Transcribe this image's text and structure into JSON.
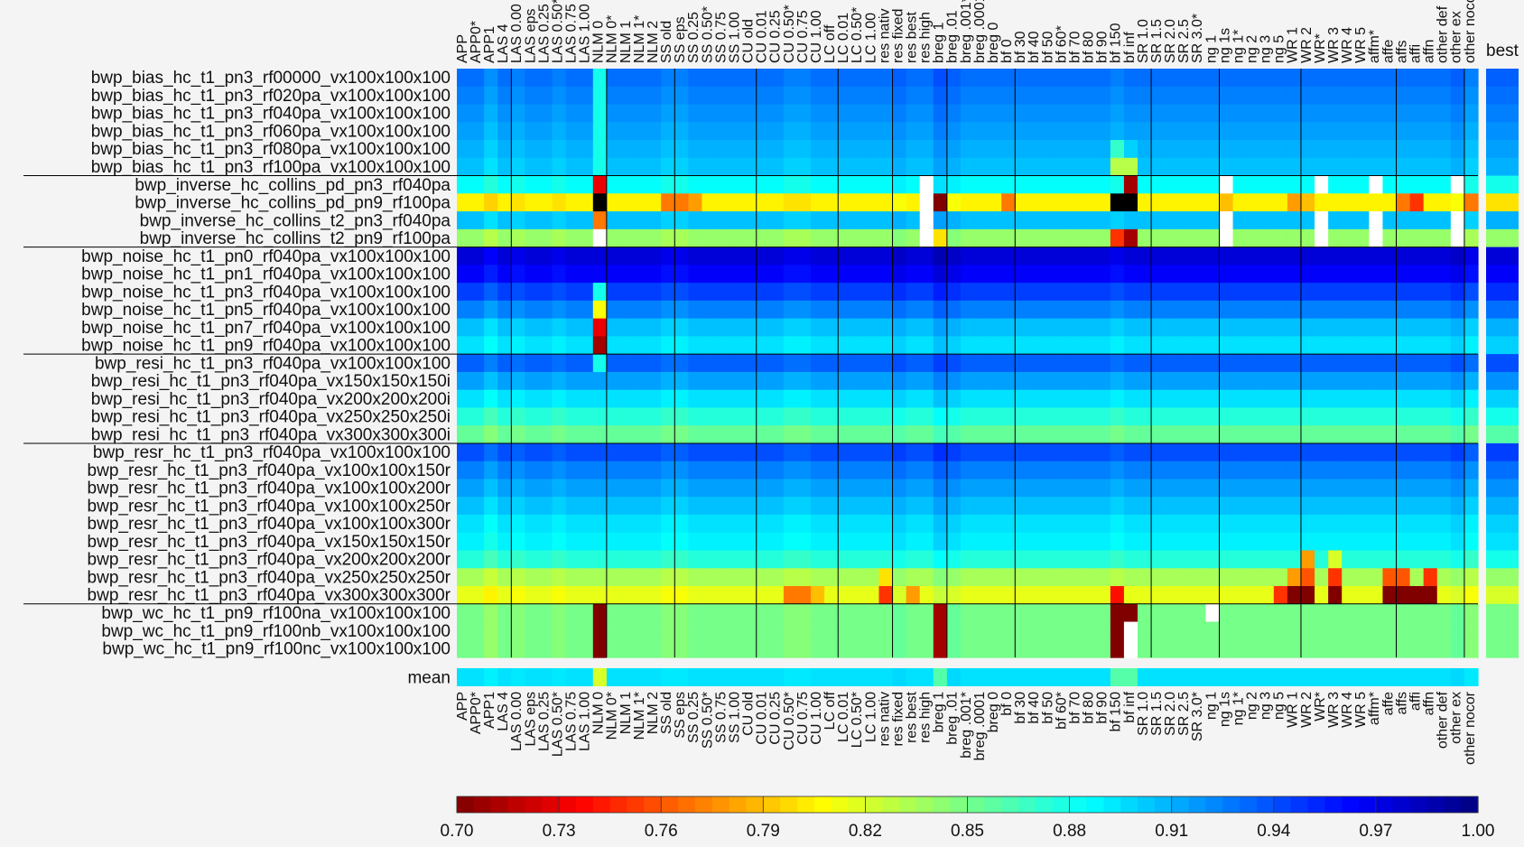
{
  "chart_data": {
    "type": "heatmap",
    "title": "",
    "xlabel": "",
    "ylabel": "",
    "color_scale": {
      "colormap": "jet-reversed",
      "min": 0.7,
      "max": 1.0,
      "ticks": [
        "0.70",
        "0.73",
        "0.76",
        "0.79",
        "0.82",
        "0.85",
        "0.88",
        "0.91",
        "0.94",
        "0.97",
        "1.00"
      ],
      "orientation": "horizontal",
      "placement": "bottom"
    },
    "columns": [
      "APP",
      "APP0*",
      "APP1",
      "LAS 4",
      "LAS 0.00",
      "LAS eps",
      "LAS 0.25",
      "LAS 0.50*",
      "LAS 0.75",
      "LAS 1.00",
      "NLM 0",
      "NLM 0*",
      "NLM 1",
      "NLM 1*",
      "NLM 2",
      "SS old",
      "SS eps",
      "SS 0.25",
      "SS 0.50*",
      "SS 0.75",
      "SS 1.00",
      "CU old",
      "CU 0.01",
      "CU 0.25",
      "CU 0.50*",
      "CU 0.75",
      "CU 1.00",
      "LC off",
      "LC 0.01",
      "LC 0.50*",
      "LC 1.00",
      "res nativ",
      "res fixed",
      "res best",
      "res high",
      "breg 1",
      "breg .01",
      "breg .001*",
      "breg .0001",
      "breg 0",
      "bf 0",
      "bf 30",
      "bf 40",
      "bf 50",
      "bf 60*",
      "bf 70",
      "bf 80",
      "bf 90",
      "bf 150",
      "bf inf",
      "SR 1.0",
      "SR 1.5",
      "SR 2.0",
      "SR 2.5",
      "SR 3.0*",
      "ng 1",
      "ng 1s",
      "ng 1*",
      "ng 2",
      "ng 3",
      "ng 5",
      "WR 1",
      "WR 2",
      "WR*",
      "WR 3",
      "WR 4",
      "WR 5",
      "affm*",
      "affe",
      "affs",
      "affi",
      "affn",
      "other def",
      "other ex",
      "other nocor"
    ],
    "column_group_ends": [
      3,
      10,
      15,
      21,
      27,
      31,
      35,
      40,
      50,
      55,
      61,
      68,
      73
    ],
    "rows": [
      "bwp_bias_hc_t1_pn3_rf00000_vx100x100x100",
      "bwp_bias_hc_t1_pn3_rf020pa_vx100x100x100",
      "bwp_bias_hc_t1_pn3_rf040pa_vx100x100x100",
      "bwp_bias_hc_t1_pn3_rf060pa_vx100x100x100",
      "bwp_bias_hc_t1_pn3_rf080pa_vx100x100x100",
      "bwp_bias_hc_t1_pn3_rf100pa_vx100x100x100",
      "bwp_inverse_hc_collins_pd_pn3_rf040pa",
      "bwp_inverse_hc_collins_pd_pn9_rf100pa",
      "bwp_inverse_hc_collins_t2_pn3_rf040pa",
      "bwp_inverse_hc_collins_t2_pn9_rf100pa",
      "bwp_noise_hc_t1_pn0_rf040pa_vx100x100x100",
      "bwp_noise_hc_t1_pn1_rf040pa_vx100x100x100",
      "bwp_noise_hc_t1_pn3_rf040pa_vx100x100x100",
      "bwp_noise_hc_t1_pn5_rf040pa_vx100x100x100",
      "bwp_noise_hc_t1_pn7_rf040pa_vx100x100x100",
      "bwp_noise_hc_t1_pn9_rf040pa_vx100x100x100",
      "bwp_resi_hc_t1_pn3_rf040pa_vx100x100x100",
      "bwp_resi_hc_t1_pn3_rf040pa_vx150x150x150i",
      "bwp_resi_hc_t1_pn3_rf040pa_vx200x200x200i",
      "bwp_resi_hc_t1_pn3_rf040pa_vx250x250x250i",
      "bwp_resi_hc_t1_pn3_rf040pa_vx300x300x300i",
      "bwp_resr_hc_t1_pn3_rf040pa_vx100x100x100",
      "bwp_resr_hc_t1_pn3_rf040pa_vx100x100x150r",
      "bwp_resr_hc_t1_pn3_rf040pa_vx100x100x200r",
      "bwp_resr_hc_t1_pn3_rf040pa_vx100x100x250r",
      "bwp_resr_hc_t1_pn3_rf040pa_vx100x100x300r",
      "bwp_resr_hc_t1_pn3_rf040pa_vx150x150x150r",
      "bwp_resr_hc_t1_pn3_rf040pa_vx200x200x200r",
      "bwp_resr_hc_t1_pn3_rf040pa_vx250x250x250r",
      "bwp_resr_hc_t1_pn3_rf040pa_vx300x300x300r",
      "bwp_wc_hc_t1_pn9_rf100na_vx100x100x100",
      "bwp_wc_hc_t1_pn9_rf100nb_vx100x100x100",
      "bwp_wc_hc_t1_pn9_rf100nc_vx100x100x100"
    ],
    "row_group_ends": [
      5,
      9,
      15,
      20,
      29
    ],
    "row_base": [
      0.93,
      0.925,
      0.92,
      0.915,
      0.91,
      0.905,
      0.885,
      0.805,
      0.905,
      0.84,
      0.975,
      0.965,
      0.945,
      0.925,
      0.905,
      0.895,
      0.935,
      0.915,
      0.895,
      0.875,
      0.855,
      0.94,
      0.925,
      0.915,
      0.905,
      0.895,
      0.89,
      0.875,
      0.835,
      0.815,
      0.85,
      0.85,
      0.85
    ],
    "column_offset": [
      0,
      0,
      -0.01,
      0,
      -0.005,
      0,
      0,
      -0.005,
      0,
      0,
      0,
      0,
      0,
      0,
      0,
      -0.005,
      -0.005,
      0,
      0,
      0,
      0,
      0,
      0,
      0,
      -0.005,
      -0.005,
      0,
      0,
      0,
      0,
      0,
      0,
      0.005,
      0,
      0,
      0.01,
      0.005,
      0,
      0,
      0,
      0,
      0,
      0,
      0,
      0,
      0,
      0,
      0,
      -0.005,
      0,
      0,
      0,
      0,
      0,
      0,
      0,
      0,
      0,
      0,
      0,
      0,
      0,
      0,
      0,
      0,
      0,
      0,
      0,
      0,
      0,
      0,
      0,
      0,
      0.005,
      -0.005
    ],
    "overrides": [
      [
        0,
        10,
        0.88
      ],
      [
        1,
        10,
        0.88
      ],
      [
        2,
        10,
        0.88
      ],
      [
        3,
        10,
        0.88
      ],
      [
        4,
        10,
        0.88
      ],
      [
        5,
        10,
        0.88
      ],
      [
        6,
        10,
        0.73
      ],
      [
        7,
        10,
        0.6
      ],
      [
        8,
        10,
        0.77
      ],
      [
        9,
        10,
        1.1
      ],
      [
        12,
        10,
        0.88
      ],
      [
        13,
        10,
        0.81
      ],
      [
        14,
        10,
        0.73
      ],
      [
        15,
        10,
        0.71
      ],
      [
        16,
        10,
        0.88
      ],
      [
        30,
        10,
        0.7
      ],
      [
        31,
        10,
        0.7
      ],
      [
        32,
        10,
        0.7
      ],
      [
        7,
        15,
        0.77
      ],
      [
        7,
        16,
        0.77
      ],
      [
        7,
        17,
        0.78
      ],
      [
        6,
        34,
        1.1
      ],
      [
        7,
        34,
        1.1
      ],
      [
        8,
        34,
        1.1
      ],
      [
        9,
        34,
        1.1
      ],
      [
        7,
        35,
        0.7
      ],
      [
        9,
        35,
        0.8
      ],
      [
        30,
        35,
        0.71
      ],
      [
        31,
        35,
        0.71
      ],
      [
        32,
        35,
        0.71
      ],
      [
        7,
        40,
        0.77
      ],
      [
        4,
        48,
        0.87
      ],
      [
        5,
        48,
        0.83
      ],
      [
        4,
        49,
        0.9
      ],
      [
        5,
        49,
        0.83
      ],
      [
        6,
        49,
        0.71
      ],
      [
        7,
        48,
        0.6
      ],
      [
        7,
        49,
        0.6
      ],
      [
        9,
        48,
        0.75
      ],
      [
        9,
        49,
        0.71
      ],
      [
        29,
        48,
        0.74
      ],
      [
        30,
        48,
        0.7
      ],
      [
        30,
        49,
        0.7
      ],
      [
        31,
        48,
        0.7
      ],
      [
        31,
        49,
        1.1
      ],
      [
        32,
        48,
        0.7
      ],
      [
        32,
        49,
        1.1
      ],
      [
        6,
        56,
        1.1
      ],
      [
        7,
        56,
        0.79
      ],
      [
        8,
        56,
        1.1
      ],
      [
        9,
        56,
        1.1
      ],
      [
        30,
        55,
        1.1
      ],
      [
        6,
        63,
        1.1
      ],
      [
        8,
        63,
        1.1
      ],
      [
        9,
        63,
        1.1
      ],
      [
        6,
        67,
        1.1
      ],
      [
        8,
        67,
        1.1
      ],
      [
        9,
        67,
        1.1
      ],
      [
        6,
        73,
        1.1
      ],
      [
        8,
        73,
        1.1
      ],
      [
        9,
        73,
        1.1
      ],
      [
        7,
        61,
        0.78
      ],
      [
        7,
        62,
        0.79
      ],
      [
        7,
        69,
        0.77
      ],
      [
        7,
        70,
        0.75
      ],
      [
        7,
        74,
        0.77
      ],
      [
        27,
        62,
        0.78
      ],
      [
        27,
        64,
        0.82
      ],
      [
        28,
        61,
        0.78
      ],
      [
        28,
        62,
        0.76
      ],
      [
        28,
        64,
        0.75
      ],
      [
        28,
        68,
        0.76
      ],
      [
        28,
        69,
        0.76
      ],
      [
        28,
        71,
        0.75
      ],
      [
        29,
        60,
        0.75
      ],
      [
        29,
        61,
        0.69
      ],
      [
        29,
        62,
        0.69
      ],
      [
        29,
        64,
        0.69
      ],
      [
        29,
        68,
        0.69
      ],
      [
        29,
        69,
        0.69
      ],
      [
        29,
        70,
        0.69
      ],
      [
        29,
        71,
        0.69
      ],
      [
        29,
        24,
        0.77
      ],
      [
        29,
        25,
        0.77
      ],
      [
        29,
        26,
        0.79
      ],
      [
        29,
        31,
        0.75
      ],
      [
        28,
        31,
        0.8
      ],
      [
        29,
        33,
        0.78
      ]
    ],
    "summary_row": {
      "label": "mean",
      "base": 0.895,
      "overrides": [
        [
          10,
          0.82
        ],
        [
          35,
          0.86
        ],
        [
          48,
          0.86
        ],
        [
          49,
          0.86
        ]
      ]
    },
    "best_column": {
      "label": "best",
      "values": [
        0.935,
        0.93,
        0.925,
        0.92,
        0.915,
        0.91,
        0.88,
        0.8,
        0.91,
        0.84,
        0.975,
        0.965,
        0.95,
        0.93,
        0.91,
        0.9,
        0.94,
        0.92,
        0.9,
        0.88,
        0.86,
        0.945,
        0.93,
        0.92,
        0.91,
        0.9,
        0.895,
        0.88,
        0.84,
        0.82,
        0.85,
        0.85,
        0.85
      ]
    }
  }
}
